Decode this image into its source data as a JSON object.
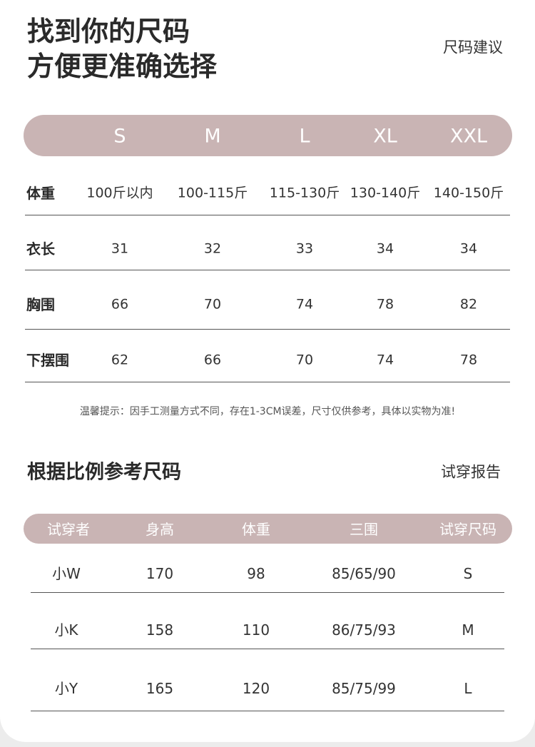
{
  "header": {
    "title_lines": [
      "找到你的尺码",
      "方便更准确选择"
    ],
    "link": "尺码建议"
  },
  "size_table": {
    "columns": [
      "S",
      "M",
      "L",
      "XL",
      "XXL"
    ],
    "rows": [
      {
        "label": "体重",
        "cells": [
          "100斤以内",
          "100-115斤",
          "115-130斤",
          "130-140斤",
          "140-150斤"
        ]
      },
      {
        "label": "衣长",
        "cells": [
          "31",
          "32",
          "33",
          "34",
          "34"
        ]
      },
      {
        "label": "胸围",
        "cells": [
          "66",
          "70",
          "74",
          "78",
          "82"
        ]
      },
      {
        "label": "下摆围",
        "cells": [
          "62",
          "66",
          "70",
          "74",
          "78"
        ]
      }
    ]
  },
  "note": "温馨提示：因手工测量方式不同，存在1-3CM误差，尺寸仅供参考，具体以实物为准!",
  "fit_section": {
    "title": "根据比例参考尺码",
    "link": "试穿报告"
  },
  "fit_table": {
    "columns": [
      "试穿者",
      "身高",
      "体重",
      "三围",
      "试穿尺码"
    ],
    "rows": [
      [
        "小W",
        "170",
        "98",
        "85/65/90",
        "S"
      ],
      [
        "小K",
        "158",
        "110",
        "86/75/93",
        "M"
      ],
      [
        "小Y",
        "165",
        "120",
        "85/75/99",
        "L"
      ]
    ]
  }
}
